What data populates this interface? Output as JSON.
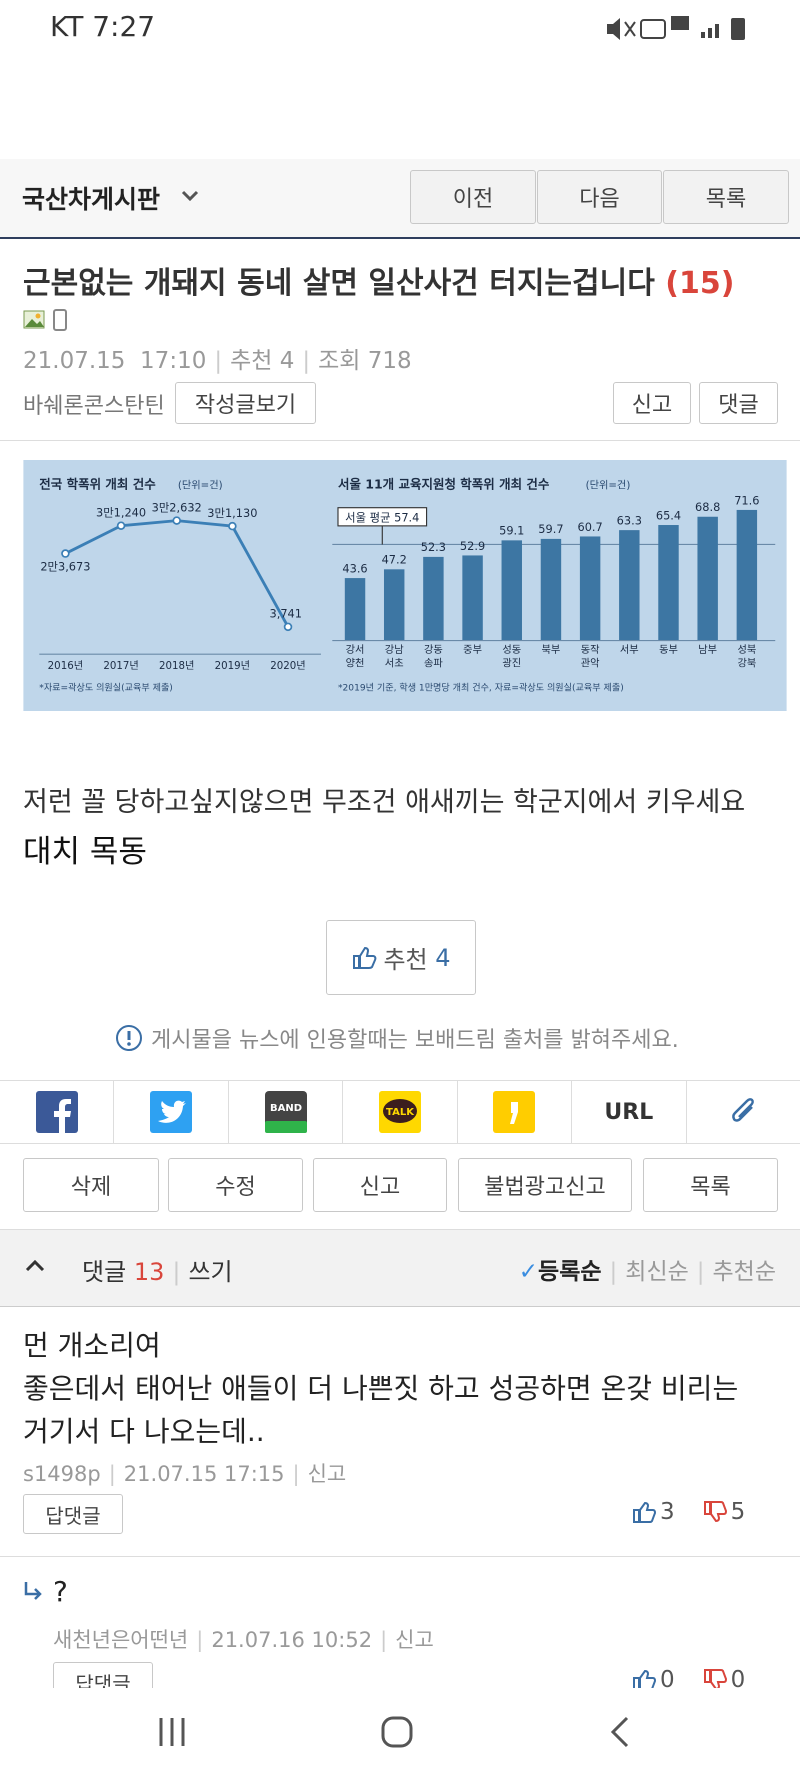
{
  "status_bar": {
    "carrier_time": "KT 7:27"
  },
  "board": {
    "name": "국산차게시판",
    "buttons": [
      "이전",
      "다음",
      "목록"
    ]
  },
  "post": {
    "title": "근본없는 개돼지 동네 살면 일산사건 터지는겁니다",
    "comment_count_label": "(15)",
    "date": "21.07.15",
    "time": "17:10",
    "recommend_label": "추천",
    "recommend_count": 4,
    "views_label": "조회",
    "views": 718,
    "author": "바쉐론콘스탄틴",
    "author_posts_button": "작성글보기",
    "report_button": "신고",
    "comment_button": "댓글",
    "image": {
      "charts": [
        {
          "type": "line",
          "title": "전국 학폭위 개최 건수",
          "unit": "(단위=건)",
          "categories": [
            "2016년",
            "2017년",
            "2018년",
            "2019년",
            "2020년"
          ],
          "values": [
            23673,
            31240,
            32632,
            31130,
            3741
          ],
          "value_labels": [
            "2만3,673",
            "3만1,240",
            "3만2,632",
            "3만1,130",
            "3,741"
          ],
          "color": "#3b7fb6",
          "source": "*자료=곽상도 의원실(교육부 제출)"
        },
        {
          "type": "bar",
          "title": "서울 11개 교육지원청 학폭위 개최 건수",
          "unit": "(단위=건)",
          "categories": [
            "강서 양천",
            "강남 서초",
            "강동 송파",
            "중부",
            "성동 광진",
            "북부",
            "동작 관악",
            "서부",
            "동부",
            "남부",
            "성북 강북"
          ],
          "values": [
            43.6,
            47.2,
            52.3,
            52.9,
            59.1,
            59.7,
            60.7,
            63.3,
            65.4,
            68.8,
            71.6
          ],
          "color": "#3d76a3",
          "average_label": "서울 평균",
          "average": 57.4,
          "source": "*2019년 기준, 학생 1만명당 개최 건수, 자료=곽상도 의원실(교육부 제출)"
        }
      ]
    },
    "body": [
      "저런 꼴 당하고싶지않으면 무조건 애새끼는 학군지에서 키우세요",
      "대치 목동"
    ],
    "recommend_button_label": "추천",
    "recommend_button_count": 4,
    "notice": "게시물을 뉴스에 인용할때는 보배드림 출처를 밝혀주세요."
  },
  "share": {
    "band": "BAND",
    "talk": "TALK",
    "url": "URL"
  },
  "actions": [
    "삭제",
    "수정",
    "신고",
    "불법광고신고",
    "목록"
  ],
  "comments": {
    "label": "댓글",
    "count": 13,
    "write": "쓰기",
    "sort": [
      "등록순",
      "최신순",
      "추천순"
    ],
    "items": [
      {
        "text": [
          "먼 개소리여",
          "좋은데서 태어난 애들이 더 나쁜짓 하고 성공하면 온갖 비리는",
          "거기서 다 나오는데.."
        ],
        "author": "s1498p",
        "date": "21.07.15",
        "time": "17:15",
        "report": "신고",
        "reply_button": "답댓글",
        "likes": 3,
        "dislikes": 5
      },
      {
        "text": [
          "?"
        ],
        "author": "새천년은어떤년",
        "date": "21.07.16",
        "time": "10:52",
        "report": "신고",
        "reply_button": "답댓글",
        "likes": 0,
        "dislikes": 0
      }
    ]
  }
}
